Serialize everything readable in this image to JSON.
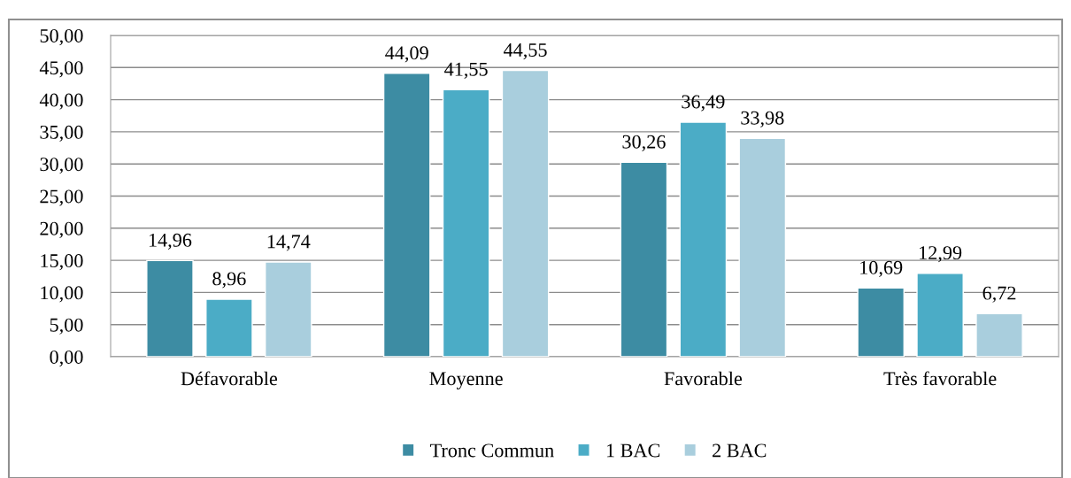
{
  "chart_data": {
    "type": "bar",
    "categories": [
      "Défavorable",
      "Moyenne",
      "Favorable",
      "Très favorable"
    ],
    "series": [
      {
        "name": "Tronc Commun",
        "color": "#3d8ca3",
        "values": [
          14.96,
          44.09,
          30.26,
          10.69
        ],
        "value_labels": [
          "14,96",
          "44,09",
          "30,26",
          "10,69"
        ]
      },
      {
        "name": "1 BAC",
        "color": "#4bacc6",
        "values": [
          8.96,
          41.55,
          36.49,
          12.99
        ],
        "value_labels": [
          "8,96",
          "41,55",
          "36,49",
          "12,99"
        ]
      },
      {
        "name": "2 BAC",
        "color": "#a9cedd",
        "values": [
          14.74,
          44.55,
          33.98,
          6.72
        ],
        "value_labels": [
          "14,74",
          "44,55",
          "33,98",
          "6,72"
        ]
      }
    ],
    "ylim": [
      0,
      50
    ],
    "yticks": [
      {
        "value": 0,
        "label": "0,00"
      },
      {
        "value": 5,
        "label": "5,00"
      },
      {
        "value": 10,
        "label": "10,00"
      },
      {
        "value": 15,
        "label": "15,00"
      },
      {
        "value": 20,
        "label": "20,00"
      },
      {
        "value": 25,
        "label": "25,00"
      },
      {
        "value": 30,
        "label": "30,00"
      },
      {
        "value": 35,
        "label": "35,00"
      },
      {
        "value": 40,
        "label": "40,00"
      },
      {
        "value": 45,
        "label": "45,00"
      },
      {
        "value": 50,
        "label": "50,00"
      }
    ],
    "grid": "y",
    "legend": "bottom"
  }
}
